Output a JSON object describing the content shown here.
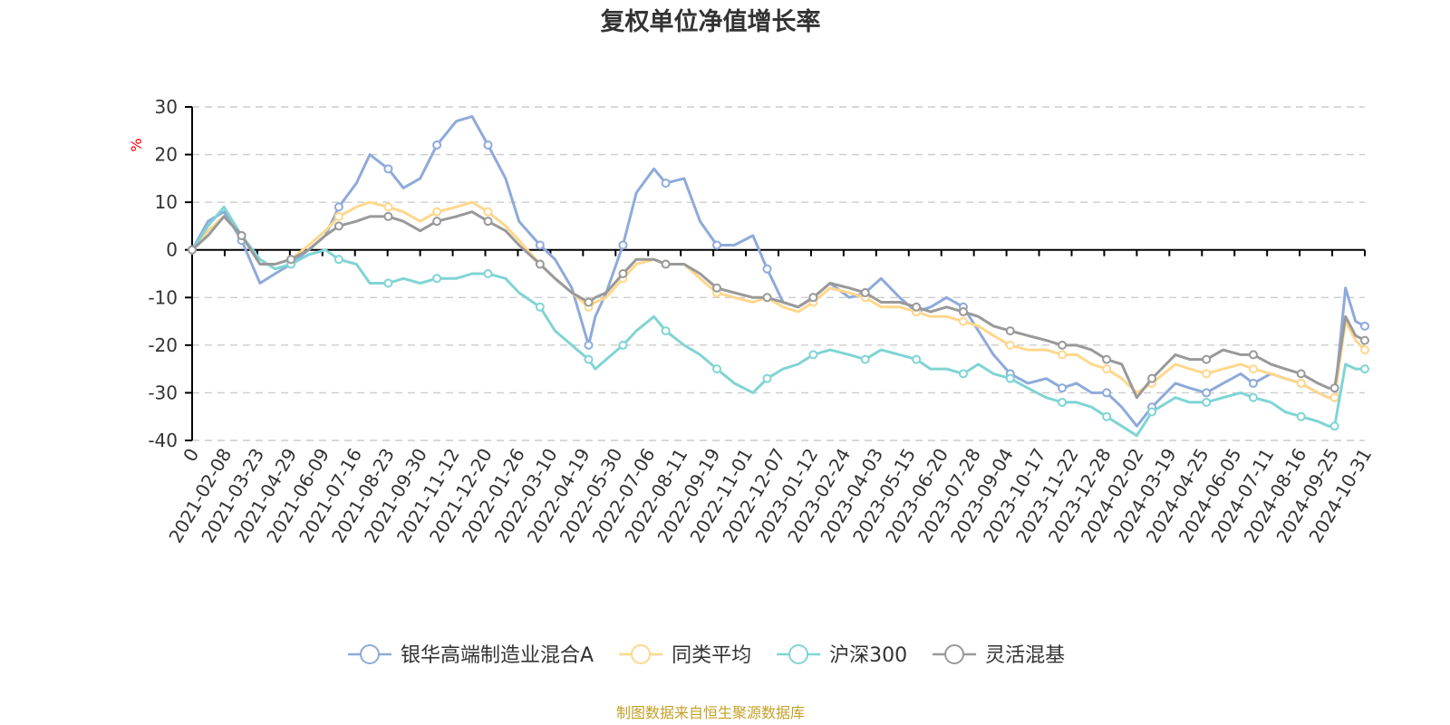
{
  "chart_data": {
    "type": "line",
    "title": "复权单位净值增长率",
    "ylabel": "%",
    "ylim": [
      -40,
      30
    ],
    "yticks": [
      30,
      20,
      10,
      0,
      -10,
      -20,
      -30,
      -40
    ],
    "grid": true,
    "legend_position": "bottom",
    "x_tick_labels": [
      "0",
      "2021-02-08",
      "2021-03-23",
      "2021-04-29",
      "2021-06-09",
      "2021-07-16",
      "2021-08-23",
      "2021-09-30",
      "2021-11-12",
      "2021-12-20",
      "2022-01-26",
      "2022-03-10",
      "2022-04-19",
      "2022-05-30",
      "2022-07-06",
      "2022-08-11",
      "2022-09-19",
      "2022-11-01",
      "2022-12-07",
      "2023-01-12",
      "2023-02-24",
      "2023-04-03",
      "2023-05-15",
      "2023-06-20",
      "2023-07-28",
      "2023-09-04",
      "2023-10-17",
      "2023-11-22",
      "2023-12-28",
      "2024-02-02",
      "2024-03-19",
      "2024-04-25",
      "2024-06-05",
      "2024-07-11",
      "2024-08-16",
      "2024-09-25",
      "2024-10-31"
    ],
    "x": [
      "2021-01-01",
      "2021-01-20",
      "2021-02-08",
      "2021-03-01",
      "2021-03-23",
      "2021-04-10",
      "2021-04-29",
      "2021-05-20",
      "2021-06-09",
      "2021-06-25",
      "2021-07-16",
      "2021-08-01",
      "2021-08-23",
      "2021-09-10",
      "2021-09-30",
      "2021-10-20",
      "2021-11-12",
      "2021-12-01",
      "2021-12-20",
      "2022-01-10",
      "2022-01-26",
      "2022-02-20",
      "2022-03-10",
      "2022-03-30",
      "2022-04-19",
      "2022-04-27",
      "2022-05-10",
      "2022-05-30",
      "2022-06-15",
      "2022-07-06",
      "2022-07-20",
      "2022-08-11",
      "2022-08-30",
      "2022-09-19",
      "2022-10-10",
      "2022-11-01",
      "2022-11-18",
      "2022-12-07",
      "2022-12-25",
      "2023-01-12",
      "2023-02-01",
      "2023-02-24",
      "2023-03-15",
      "2023-04-03",
      "2023-04-25",
      "2023-05-15",
      "2023-06-01",
      "2023-06-20",
      "2023-07-10",
      "2023-07-28",
      "2023-08-15",
      "2023-09-04",
      "2023-09-25",
      "2023-10-17",
      "2023-11-05",
      "2023-11-22",
      "2023-12-10",
      "2023-12-28",
      "2024-01-15",
      "2024-02-02",
      "2024-02-20",
      "2024-03-19",
      "2024-04-05",
      "2024-04-25",
      "2024-05-15",
      "2024-06-05",
      "2024-06-20",
      "2024-07-11",
      "2024-07-28",
      "2024-08-16",
      "2024-09-05",
      "2024-09-18",
      "2024-09-25",
      "2024-10-08",
      "2024-10-20",
      "2024-10-31"
    ],
    "series": [
      {
        "name": "银华高端制造业混合A",
        "color": "#8eaadb",
        "values": [
          0,
          6,
          8,
          2,
          -7,
          -5,
          -3,
          0,
          3,
          9,
          14,
          20,
          17,
          13,
          15,
          22,
          27,
          28,
          22,
          15,
          6,
          1,
          -2,
          -8,
          -20,
          -14,
          -9,
          1,
          12,
          17,
          14,
          15,
          6,
          1,
          1,
          3,
          -4,
          -11,
          -12,
          -10,
          -7,
          -10,
          -9,
          -6,
          -10,
          -13,
          -12,
          -10,
          -12,
          -17,
          -22,
          -26,
          -28,
          -27,
          -29,
          -28,
          -30,
          -30,
          -33,
          -37,
          -33,
          -28,
          -29,
          -30,
          -28,
          -26,
          -28,
          -26,
          -27,
          -28,
          -30,
          -31,
          -31,
          -8,
          -15,
          -16
        ]
      },
      {
        "name": "同类平均",
        "color": "#ffd78c",
        "values": [
          0,
          4,
          7,
          3,
          -3,
          -3,
          -2,
          1,
          4,
          7,
          9,
          10,
          9,
          8,
          6,
          8,
          9,
          10,
          8,
          5,
          2,
          -3,
          -6,
          -9,
          -12,
          -11,
          -10,
          -6,
          -3,
          -2,
          -3,
          -3,
          -6,
          -9,
          -10,
          -11,
          -10,
          -12,
          -13,
          -11,
          -8,
          -9,
          -10,
          -12,
          -12,
          -13,
          -14,
          -14,
          -15,
          -16,
          -18,
          -20,
          -21,
          -21,
          -22,
          -22,
          -24,
          -25,
          -27,
          -30,
          -28,
          -24,
          -25,
          -26,
          -25,
          -24,
          -25,
          -26,
          -27,
          -28,
          -30,
          -31,
          -31,
          -15,
          -19,
          -21
        ]
      },
      {
        "name": "沪深300",
        "color": "#80d4d4",
        "values": [
          0,
          5,
          9,
          3,
          -2,
          -4,
          -3,
          -1,
          0,
          -2,
          -3,
          -7,
          -7,
          -6,
          -7,
          -6,
          -6,
          -5,
          -5,
          -6,
          -9,
          -12,
          -17,
          -20,
          -23,
          -25,
          -23,
          -20,
          -17,
          -14,
          -17,
          -20,
          -22,
          -25,
          -28,
          -30,
          -27,
          -25,
          -24,
          -22,
          -21,
          -22,
          -23,
          -21,
          -22,
          -23,
          -25,
          -25,
          -26,
          -24,
          -26,
          -27,
          -29,
          -31,
          -32,
          -32,
          -33,
          -35,
          -37,
          -39,
          -34,
          -31,
          -32,
          -32,
          -31,
          -30,
          -31,
          -32,
          -34,
          -35,
          -36,
          -37,
          -37,
          -24,
          -25,
          -25
        ]
      },
      {
        "name": "灵活混基",
        "color": "#999999",
        "values": [
          0,
          3,
          7,
          3,
          -3,
          -3,
          -2,
          0,
          3,
          5,
          6,
          7,
          7,
          6,
          4,
          6,
          7,
          8,
          6,
          4,
          1,
          -3,
          -6,
          -9,
          -11,
          -10,
          -9,
          -5,
          -2,
          -2,
          -3,
          -3,
          -5,
          -8,
          -9,
          -10,
          -10,
          -11,
          -12,
          -10,
          -7,
          -8,
          -9,
          -11,
          -11,
          -12,
          -13,
          -12,
          -13,
          -14,
          -16,
          -17,
          -18,
          -19,
          -20,
          -20,
          -21,
          -23,
          -24,
          -31,
          -27,
          -22,
          -23,
          -23,
          -21,
          -22,
          -22,
          -24,
          -25,
          -26,
          -28,
          -29,
          -29,
          -14,
          -18,
          -19
        ]
      }
    ]
  },
  "footer": {
    "source": "制图数据来自恒生聚源数据库"
  }
}
